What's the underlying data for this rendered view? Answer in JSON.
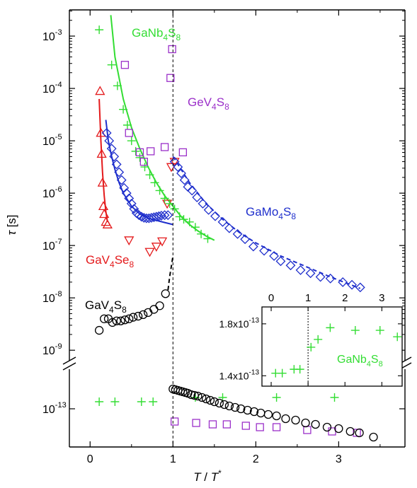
{
  "chart_data": {
    "type": "scatter",
    "xlabel": "T / T*",
    "xlabel_parts": {
      "v1": "T",
      "slash": " / ",
      "v2": "T",
      "sup": "*"
    },
    "ylabel": "τ [s]",
    "ylabel_parts": {
      "sym": "τ",
      "unit": " [s]"
    },
    "xlim": [
      -0.25,
      3.8
    ],
    "x_ticks": [
      "0",
      "1",
      "2",
      "3"
    ],
    "x_tick_values": [
      0,
      1,
      2,
      3
    ],
    "yscale": "log, broken axis",
    "upper_panel": {
      "ylim_log10": [
        -9.2,
        -2.5
      ],
      "y_tick_exponents": [
        -9,
        -8,
        -7,
        -6,
        -5,
        -4,
        -3
      ]
    },
    "lower_panel": {
      "ylim_log10": [
        -13.27,
        -12.72
      ],
      "y_tick_exponents": [
        -13
      ]
    },
    "y_tick_base": "10",
    "vertical_reference": {
      "x": 1,
      "style": "dashed"
    },
    "labels": [
      {
        "id": "GaNb4S8",
        "base": "GaNb",
        "n1": "4",
        "mid": "S",
        "n2": "8",
        "color": "#33dd33"
      },
      {
        "id": "GeV4S8",
        "base": "GeV",
        "n1": "4",
        "mid": "S",
        "n2": "8",
        "color": "#9b30c9"
      },
      {
        "id": "GaMo4S8",
        "base": "GaMo",
        "n1": "4",
        "mid": "S",
        "n2": "8",
        "color": "#1f2fcc"
      },
      {
        "id": "GaV4Se8",
        "base": "GaV",
        "n1": "4",
        "mid": "Se",
        "n2": "8",
        "color": "#e41a1c"
      },
      {
        "id": "GaV4S8",
        "base": "GaV",
        "n1": "4",
        "mid": "S",
        "n2": "8",
        "color": "#000000"
      }
    ],
    "series": [
      {
        "id": "GaV4Se8",
        "marker": "triangle-up",
        "color": "#e41a1c",
        "points": [
          [
            0.12,
            -4.05
          ],
          [
            0.13,
            -4.85
          ],
          [
            0.14,
            -5.25
          ],
          [
            0.15,
            -5.8
          ],
          [
            0.16,
            -6.25
          ],
          [
            0.17,
            -6.4
          ],
          [
            0.19,
            -6.55
          ],
          [
            0.21,
            -6.6
          ]
        ]
      },
      {
        "id": "GaV4Se8-low",
        "marker": "triangle-down",
        "color": "#e41a1c",
        "points": [
          [
            0.47,
            -6.9
          ],
          [
            0.72,
            -7.12
          ],
          [
            0.8,
            -7.02
          ],
          [
            0.87,
            -6.92
          ],
          [
            0.93,
            -6.2
          ],
          [
            0.98,
            -5.5
          ],
          [
            1.02,
            -5.4
          ]
        ]
      },
      {
        "id": "GaMo4S8",
        "marker": "diamond",
        "color": "#1f2fcc",
        "points": [
          [
            0.2,
            -4.85
          ],
          [
            0.23,
            -5.0
          ],
          [
            0.26,
            -5.15
          ],
          [
            0.29,
            -5.3
          ],
          [
            0.32,
            -5.45
          ],
          [
            0.35,
            -5.6
          ],
          [
            0.38,
            -5.75
          ],
          [
            0.41,
            -5.9
          ],
          [
            0.44,
            -6.0
          ],
          [
            0.47,
            -6.1
          ],
          [
            0.5,
            -6.2
          ],
          [
            0.53,
            -6.3
          ],
          [
            0.56,
            -6.38
          ],
          [
            0.59,
            -6.42
          ],
          [
            0.62,
            -6.45
          ],
          [
            0.65,
            -6.47
          ],
          [
            0.68,
            -6.48
          ],
          [
            0.71,
            -6.48
          ],
          [
            0.74,
            -6.47
          ],
          [
            0.77,
            -6.46
          ],
          [
            0.8,
            -6.45
          ],
          [
            0.83,
            -6.44
          ],
          [
            0.86,
            -6.43
          ],
          [
            0.9,
            -6.42
          ],
          [
            0.94,
            -6.42
          ],
          [
            1.02,
            -5.4
          ],
          [
            1.06,
            -5.5
          ],
          [
            1.1,
            -5.62
          ],
          [
            1.14,
            -5.75
          ],
          [
            1.18,
            -5.88
          ],
          [
            1.23,
            -5.95
          ],
          [
            1.29,
            -6.08
          ],
          [
            1.36,
            -6.2
          ],
          [
            1.43,
            -6.32
          ],
          [
            1.51,
            -6.44
          ],
          [
            1.6,
            -6.55
          ],
          [
            1.68,
            -6.67
          ],
          [
            1.78,
            -6.78
          ],
          [
            1.87,
            -6.88
          ],
          [
            1.97,
            -7.02
          ],
          [
            2.1,
            -7.1
          ],
          [
            2.22,
            -7.2
          ],
          [
            2.3,
            -7.3
          ],
          [
            2.42,
            -7.38
          ],
          [
            2.54,
            -7.47
          ],
          [
            2.66,
            -7.53
          ],
          [
            2.78,
            -7.6
          ],
          [
            2.9,
            -7.63
          ],
          [
            3.05,
            -7.7
          ],
          [
            3.16,
            -7.75
          ],
          [
            3.26,
            -7.8
          ]
        ]
      },
      {
        "id": "GaNb4S8",
        "marker": "plus",
        "color": "#33dd33",
        "points": [
          [
            0.11,
            -2.88
          ],
          [
            0.26,
            -3.55
          ],
          [
            0.33,
            -3.95
          ],
          [
            0.4,
            -4.4
          ],
          [
            0.45,
            -4.7
          ],
          [
            0.5,
            -5.0
          ],
          [
            0.55,
            -5.2
          ],
          [
            0.6,
            -5.32
          ],
          [
            0.66,
            -5.5
          ],
          [
            0.72,
            -5.65
          ],
          [
            0.78,
            -5.8
          ],
          [
            0.84,
            -5.95
          ],
          [
            0.9,
            -6.1
          ],
          [
            0.96,
            -6.2
          ],
          [
            1.02,
            -6.3
          ],
          [
            1.08,
            -6.45
          ],
          [
            1.13,
            -6.5
          ],
          [
            1.2,
            -6.55
          ],
          [
            1.27,
            -6.65
          ],
          [
            1.34,
            -6.78
          ],
          [
            1.42,
            -6.87
          ]
        ]
      },
      {
        "id": "GeV4S8",
        "marker": "square",
        "color": "#9b30c9",
        "points": [
          [
            0.42,
            -3.55
          ],
          [
            0.47,
            -4.85
          ],
          [
            0.6,
            -5.22
          ],
          [
            0.65,
            -5.4
          ],
          [
            0.73,
            -5.2
          ],
          [
            0.9,
            -5.12
          ],
          [
            0.97,
            -3.8
          ],
          [
            0.99,
            -3.25
          ],
          [
            1.12,
            -5.22
          ]
        ]
      },
      {
        "id": "GaV4S8",
        "marker": "circle",
        "color": "#000000",
        "points": [
          [
            0.11,
            -8.62
          ],
          [
            0.17,
            -8.4
          ],
          [
            0.22,
            -8.4
          ],
          [
            0.27,
            -8.47
          ],
          [
            0.32,
            -8.44
          ],
          [
            0.37,
            -8.44
          ],
          [
            0.42,
            -8.42
          ],
          [
            0.47,
            -8.4
          ],
          [
            0.52,
            -8.37
          ],
          [
            0.58,
            -8.35
          ],
          [
            0.64,
            -8.32
          ],
          [
            0.7,
            -8.28
          ],
          [
            0.77,
            -8.22
          ],
          [
            0.84,
            -8.15
          ],
          [
            0.91,
            -7.92
          ]
        ]
      },
      {
        "id": "GaNb4S8-low",
        "marker": "plus",
        "color": "#33dd33",
        "points": [
          [
            0.11,
            -12.95
          ],
          [
            0.3,
            -12.95
          ],
          [
            0.62,
            -12.95
          ],
          [
            0.76,
            -12.95
          ],
          [
            1.27,
            -12.92
          ],
          [
            1.6,
            -12.92
          ],
          [
            2.25,
            -12.92
          ],
          [
            2.95,
            -12.92
          ]
        ]
      },
      {
        "id": "GeV4S8-low",
        "marker": "square",
        "color": "#9b30c9",
        "points": [
          [
            1.02,
            -13.09
          ],
          [
            1.28,
            -13.1
          ],
          [
            1.48,
            -13.11
          ],
          [
            1.65,
            -13.11
          ],
          [
            1.88,
            -13.12
          ],
          [
            2.05,
            -13.13
          ],
          [
            2.25,
            -13.13
          ],
          [
            2.62,
            -13.15
          ],
          [
            2.92,
            -13.16
          ],
          [
            3.22,
            -13.17
          ]
        ]
      },
      {
        "id": "GaV4S8-low",
        "marker": "circle",
        "color": "#000000",
        "points": [
          [
            1.0,
            -12.86
          ],
          [
            1.03,
            -12.865
          ],
          [
            1.06,
            -12.87
          ],
          [
            1.09,
            -12.875
          ],
          [
            1.12,
            -12.88
          ],
          [
            1.15,
            -12.885
          ],
          [
            1.18,
            -12.89
          ],
          [
            1.22,
            -12.9
          ],
          [
            1.26,
            -12.905
          ],
          [
            1.3,
            -12.91
          ],
          [
            1.35,
            -12.92
          ],
          [
            1.4,
            -12.93
          ],
          [
            1.45,
            -12.94
          ],
          [
            1.5,
            -12.95
          ],
          [
            1.56,
            -12.96
          ],
          [
            1.62,
            -12.97
          ],
          [
            1.68,
            -12.98
          ],
          [
            1.75,
            -12.99
          ],
          [
            1.82,
            -13.0
          ],
          [
            1.9,
            -13.01
          ],
          [
            1.98,
            -13.02
          ],
          [
            2.06,
            -13.03
          ],
          [
            2.15,
            -13.04
          ],
          [
            2.25,
            -13.05
          ],
          [
            2.36,
            -13.07
          ],
          [
            2.48,
            -13.08
          ],
          [
            2.6,
            -13.1
          ],
          [
            2.72,
            -13.11
          ],
          [
            2.86,
            -13.13
          ],
          [
            3.0,
            -13.14
          ],
          [
            3.14,
            -13.16
          ],
          [
            3.25,
            -13.17
          ],
          [
            3.42,
            -13.2
          ]
        ]
      }
    ],
    "fits": [
      {
        "id": "fit-GaNb4S8",
        "color": "#33dd33",
        "style": "solid",
        "points": [
          [
            0.25,
            -2.6
          ],
          [
            0.3,
            -3.4
          ],
          [
            0.4,
            -4.2
          ],
          [
            0.5,
            -4.75
          ],
          [
            0.6,
            -5.15
          ],
          [
            0.7,
            -5.5
          ],
          [
            0.8,
            -5.8
          ],
          [
            0.9,
            -6.05
          ],
          [
            1.0,
            -6.25
          ],
          [
            1.1,
            -6.45
          ],
          [
            1.2,
            -6.6
          ],
          [
            1.3,
            -6.72
          ],
          [
            1.4,
            -6.82
          ],
          [
            1.5,
            -6.9
          ]
        ]
      },
      {
        "id": "fit-GaV4Se8",
        "color": "#e41a1c",
        "style": "solid",
        "points": [
          [
            0.11,
            -4.2
          ],
          [
            0.13,
            -5.0
          ],
          [
            0.15,
            -5.6
          ],
          [
            0.17,
            -6.05
          ],
          [
            0.19,
            -6.35
          ],
          [
            0.21,
            -6.55
          ]
        ]
      },
      {
        "id": "fit-GaMo4S8-low",
        "color": "#1f2fcc",
        "style": "solid",
        "points": [
          [
            0.19,
            -4.6
          ],
          [
            0.22,
            -5.0
          ],
          [
            0.26,
            -5.3
          ],
          [
            0.3,
            -5.55
          ],
          [
            0.35,
            -5.8
          ],
          [
            0.4,
            -6.0
          ],
          [
            0.5,
            -6.25
          ],
          [
            0.6,
            -6.4
          ],
          [
            0.7,
            -6.48
          ],
          [
            0.8,
            -6.52
          ],
          [
            0.9,
            -6.56
          ],
          [
            1.0,
            -6.6
          ]
        ]
      },
      {
        "id": "fit-GaMo4S8-high",
        "color": "#1f2fcc",
        "style": "dashed",
        "points": [
          [
            1.0,
            -5.3
          ],
          [
            1.2,
            -5.8
          ],
          [
            1.4,
            -6.2
          ],
          [
            1.6,
            -6.5
          ],
          [
            1.8,
            -6.75
          ],
          [
            2.0,
            -6.95
          ],
          [
            2.3,
            -7.2
          ],
          [
            2.6,
            -7.4
          ],
          [
            2.9,
            -7.6
          ],
          [
            3.26,
            -7.82
          ]
        ]
      },
      {
        "id": "fit-GaV4S8",
        "color": "#000000",
        "style": "dashed",
        "points": [
          [
            0.94,
            -7.85
          ],
          [
            0.96,
            -7.6
          ],
          [
            0.98,
            -7.4
          ],
          [
            1.0,
            -7.2
          ]
        ]
      }
    ],
    "inset": {
      "series_label_id": "GaNb4S8",
      "x_ticks": [
        "0",
        "1",
        "2",
        "3"
      ],
      "x_tick_values": [
        0,
        1,
        2,
        3
      ],
      "xlim": [
        -0.25,
        3.55
      ],
      "y_ticks": [
        "1.8x10",
        "1.4x10"
      ],
      "y_tick_values": [
        1.8e-13,
        1.4e-13
      ],
      "y_tick_exp": "-13",
      "ylim": [
        1.32e-13,
        1.93e-13
      ],
      "vertical_reference": {
        "x": 1,
        "style": "dotted"
      },
      "points": [
        [
          0.12,
          1.42e-13
        ],
        [
          0.3,
          1.42e-13
        ],
        [
          0.62,
          1.45e-13
        ],
        [
          0.78,
          1.45e-13
        ],
        [
          1.08,
          1.62e-13
        ],
        [
          1.27,
          1.68e-13
        ],
        [
          1.6,
          1.77e-13
        ],
        [
          2.28,
          1.75e-13
        ],
        [
          2.95,
          1.75e-13
        ],
        [
          3.42,
          1.7e-13
        ]
      ]
    }
  }
}
